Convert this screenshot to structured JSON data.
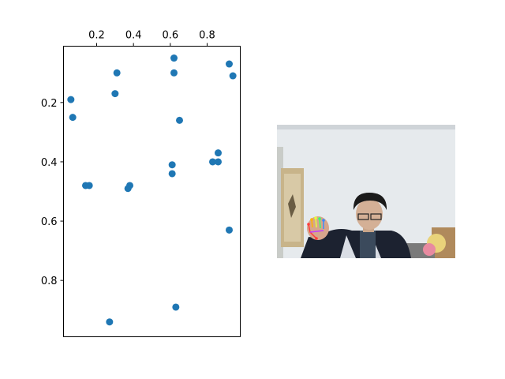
{
  "chart_data": {
    "type": "scatter",
    "title": "",
    "xlabel": "",
    "ylabel": "",
    "xlim": [
      0.02,
      0.98
    ],
    "ylim": [
      0.99,
      0.01
    ],
    "x_axis_position": "top",
    "y_axis_inverted": true,
    "grid": false,
    "color": "#1f77b4",
    "x_ticks": [
      "0.2",
      "0.4",
      "0.6",
      "0.8"
    ],
    "y_ticks": [
      "0.2",
      "0.4",
      "0.6",
      "0.8"
    ],
    "points": [
      {
        "x": 0.62,
        "y": 0.05
      },
      {
        "x": 0.92,
        "y": 0.07
      },
      {
        "x": 0.31,
        "y": 0.1
      },
      {
        "x": 0.62,
        "y": 0.1
      },
      {
        "x": 0.94,
        "y": 0.11
      },
      {
        "x": 0.3,
        "y": 0.17
      },
      {
        "x": 0.06,
        "y": 0.19
      },
      {
        "x": 0.07,
        "y": 0.25
      },
      {
        "x": 0.65,
        "y": 0.26
      },
      {
        "x": 0.86,
        "y": 0.37
      },
      {
        "x": 0.61,
        "y": 0.41
      },
      {
        "x": 0.83,
        "y": 0.4
      },
      {
        "x": 0.86,
        "y": 0.4
      },
      {
        "x": 0.61,
        "y": 0.44
      },
      {
        "x": 0.14,
        "y": 0.48
      },
      {
        "x": 0.16,
        "y": 0.48
      },
      {
        "x": 0.38,
        "y": 0.48
      },
      {
        "x": 0.37,
        "y": 0.49
      },
      {
        "x": 0.92,
        "y": 0.63
      },
      {
        "x": 0.63,
        "y": 0.89
      },
      {
        "x": 0.27,
        "y": 0.94
      }
    ]
  },
  "photo": {
    "icon": "webcam-hand-tracking-photo",
    "wall_color": "#e8ecef",
    "ceiling_color": "#f2f4f6"
  }
}
